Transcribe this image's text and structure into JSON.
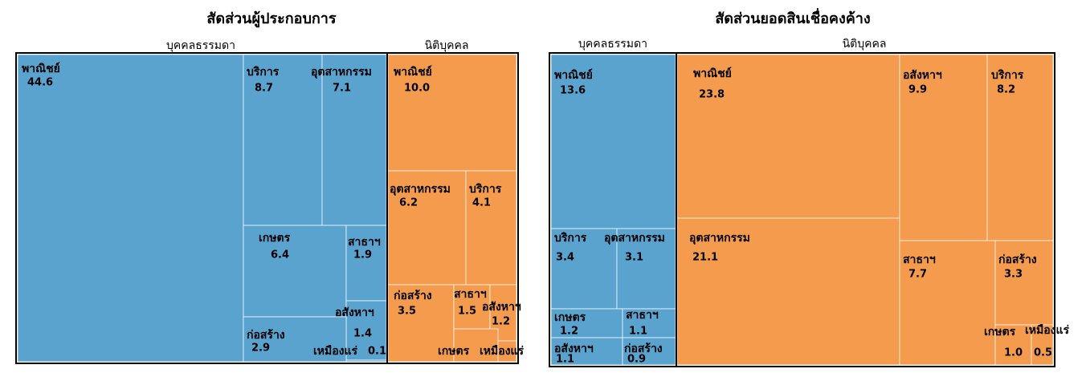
{
  "chart_data": [
    {
      "type": "treemap",
      "title": "สัดส่วนผู้ประกอบการ",
      "series": [
        {
          "name": "บุคคลธรรมดา",
          "color": "#5aa3cf",
          "categories": [
            "พาณิชย์",
            "บริการ",
            "อุตสาหกรรม",
            "เกษตร",
            "สาธาฯ",
            "อสังหาฯ",
            "ก่อสร้าง",
            "เหมืองแร่"
          ],
          "values": [
            44.6,
            8.7,
            7.1,
            6.4,
            1.9,
            1.4,
            2.9,
            0.1
          ]
        },
        {
          "name": "นิติบุคคล",
          "color": "#f59b4e",
          "categories": [
            "พาณิชย์",
            "อุตสาหกรรม",
            "บริการ",
            "ก่อสร้าง",
            "สาธาฯ",
            "อสังหาฯ",
            "เกษตร",
            "เหมืองแร่"
          ],
          "values": [
            10,
            6.2,
            4.1,
            3.5,
            1.5,
            1.2,
            0.3,
            0.2
          ],
          "value_labels": [
            "10.0",
            "6.2",
            "4.1",
            "3.5",
            "1.5",
            "1.2",
            null,
            null
          ]
        }
      ]
    },
    {
      "type": "treemap",
      "title": "สัดส่วนยอดสินเชื่อคงค้าง",
      "series": [
        {
          "name": "บุคคลธรรมดา",
          "color": "#5aa3cf",
          "categories": [
            "พาณิชย์",
            "บริการ",
            "อุตสาหกรรม",
            "เกษตร",
            "สาธาฯ",
            "อสังหาฯ",
            "ก่อสร้าง"
          ],
          "values": [
            13.6,
            3.4,
            3.1,
            1.2,
            1.1,
            1.1,
            0.9
          ]
        },
        {
          "name": "นิติบุคคล",
          "color": "#f59b4e",
          "categories": [
            "พาณิชย์",
            "อุตสาหกรรม",
            "อสังหาฯ",
            "บริการ",
            "สาธาฯ",
            "ก่อสร้าง",
            "เกษตร",
            "เหมืองแร่"
          ],
          "values": [
            23.8,
            21.1,
            9.9,
            8.2,
            7.7,
            3.3,
            1,
            0.5
          ],
          "value_labels": [
            "23.8",
            "21.1",
            "9.9",
            "8.2",
            "7.7",
            "3.3",
            "1.0",
            "0.5"
          ]
        }
      ]
    }
  ]
}
